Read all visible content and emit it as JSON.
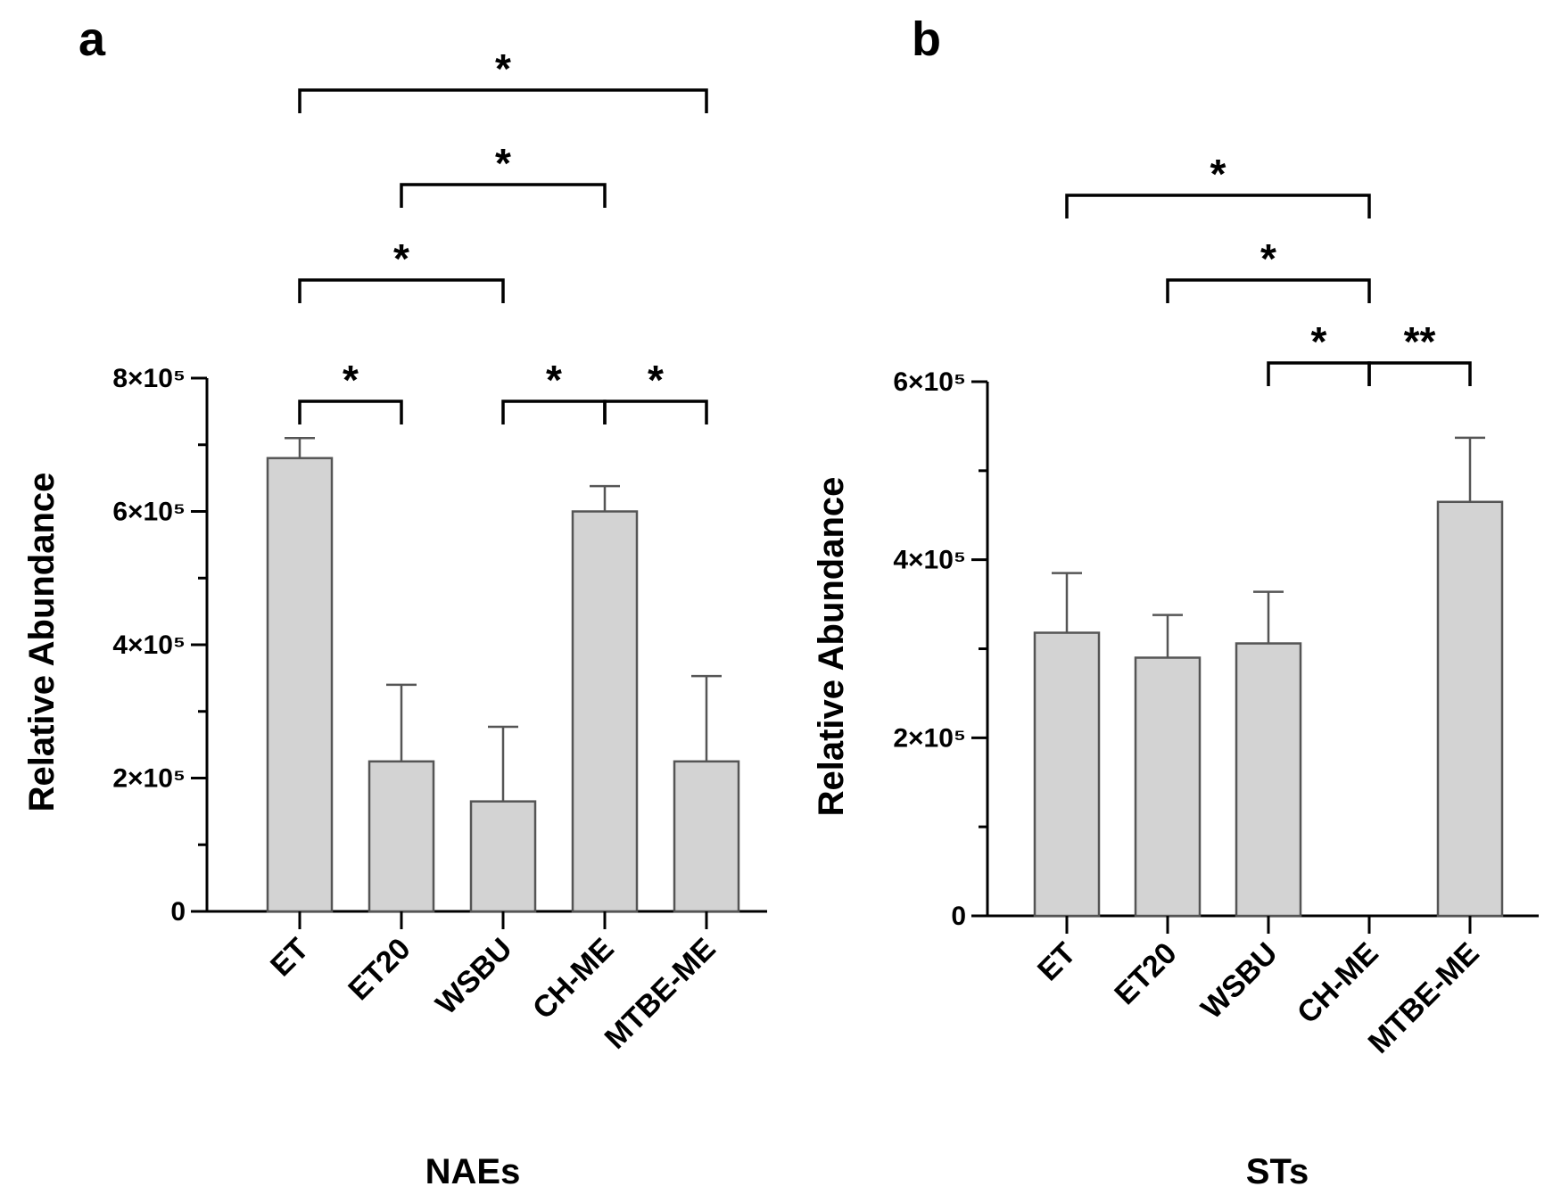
{
  "chart_data": [
    {
      "panel": "a",
      "type": "bar",
      "title": "",
      "xlabel": "NAEs",
      "ylabel": "Relative Abundance",
      "ylim": [
        0,
        800000
      ],
      "yticks": [
        {
          "value": 0,
          "label": "0"
        },
        {
          "value": 200000,
          "label": "2×10⁵"
        },
        {
          "value": 400000,
          "label": "4×10⁵"
        },
        {
          "value": 600000,
          "label": "6×10⁵"
        },
        {
          "value": 800000,
          "label": "8×10⁵"
        }
      ],
      "categories": [
        "ET",
        "ET20",
        "WSBU",
        "CH-ME",
        "MTBE-ME"
      ],
      "values": [
        680000,
        225000,
        165000,
        600000,
        225000
      ],
      "errors": [
        30000,
        115000,
        112000,
        38000,
        128000
      ],
      "bar_color": "#d3d3d3",
      "significance": [
        {
          "from": 0,
          "to": 1,
          "label": "*"
        },
        {
          "from": 2,
          "to": 3,
          "label": "*"
        },
        {
          "from": 3,
          "to": 4,
          "label": "*"
        },
        {
          "from": 0,
          "to": 2,
          "label": "*"
        },
        {
          "from": 1,
          "to": 3,
          "label": "*"
        },
        {
          "from": 0,
          "to": 4,
          "label": "*"
        }
      ]
    },
    {
      "panel": "b",
      "type": "bar",
      "title": "",
      "xlabel": "STs",
      "ylabel": "Relative Abundance",
      "ylim": [
        0,
        600000
      ],
      "yticks": [
        {
          "value": 0,
          "label": "0"
        },
        {
          "value": 200000,
          "label": "2×10⁵"
        },
        {
          "value": 400000,
          "label": "4×10⁵"
        },
        {
          "value": 600000,
          "label": "6×10⁵"
        }
      ],
      "categories": [
        "ET",
        "ET20",
        "WSBU",
        "CH-ME",
        "MTBE-ME"
      ],
      "values": [
        318000,
        290000,
        306000,
        0,
        465000
      ],
      "errors": [
        67000,
        48000,
        58000,
        0,
        72000
      ],
      "bar_color": "#d3d3d3",
      "significance": [
        {
          "from": 2,
          "to": 3,
          "label": "*"
        },
        {
          "from": 3,
          "to": 4,
          "label": "**"
        },
        {
          "from": 1,
          "to": 3,
          "label": "*"
        },
        {
          "from": 0,
          "to": 3,
          "label": "*"
        }
      ]
    }
  ]
}
